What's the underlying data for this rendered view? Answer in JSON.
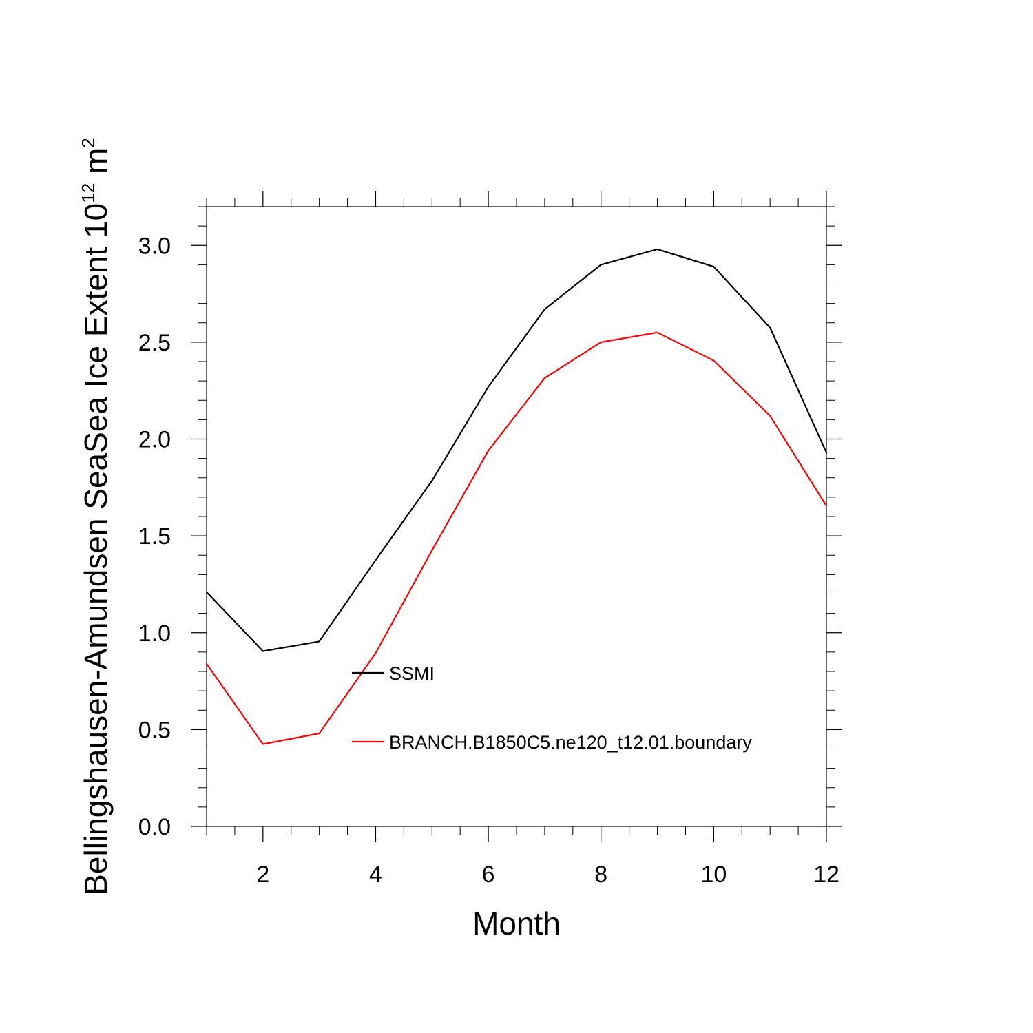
{
  "chart_data": {
    "type": "line",
    "x": [
      1,
      2,
      3,
      4,
      5,
      6,
      7,
      8,
      9,
      10,
      11,
      12
    ],
    "series": [
      {
        "name": "SSMI",
        "color": "#000000",
        "values": [
          1.21,
          0.905,
          0.955,
          1.375,
          1.785,
          2.27,
          2.67,
          2.9,
          2.98,
          2.89,
          2.575,
          1.93
        ]
      },
      {
        "name": "BRANCH.B1850C5.ne120_t12.01.boundary",
        "color": "#ff0000",
        "values": [
          0.84,
          0.425,
          0.48,
          0.895,
          1.425,
          1.94,
          2.315,
          2.5,
          2.55,
          2.405,
          2.12,
          1.655
        ]
      }
    ],
    "xlabel": "Month",
    "ylabel": {
      "prefix": "Bellingshausen-Amundsen SeaSea Ice Extent 10",
      "superscript1": "12",
      "middle": " m",
      "superscript2": "2"
    },
    "xlim": [
      1,
      12
    ],
    "ylim": [
      0,
      3.2
    ],
    "xticks": [
      2,
      4,
      6,
      8,
      10,
      12
    ],
    "xtick_labels": [
      "2",
      "4",
      "6",
      "8",
      "10",
      "12"
    ],
    "yticks": [
      0,
      0.5,
      1,
      1.5,
      2,
      2.5,
      3
    ],
    "ytick_labels": [
      "0.0",
      "0.5",
      "1.0",
      "1.5",
      "2.0",
      "2.5",
      "3.0"
    ],
    "grid": false,
    "legend_position": "inside lower-center"
  }
}
